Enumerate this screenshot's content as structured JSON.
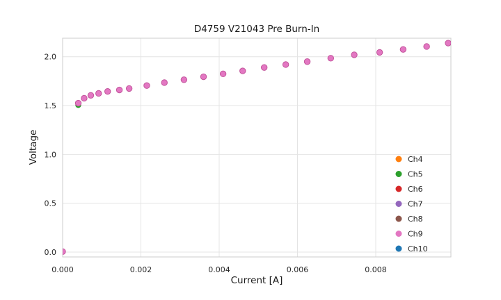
{
  "chart_data": {
    "type": "scatter",
    "title": "D4759 V21043 Pre Burn-In",
    "xlabel": "Current [A]",
    "ylabel": "Voltage",
    "xlim": [
      0,
      0.00992
    ],
    "ylim": [
      -0.05,
      2.19
    ],
    "xticks": [
      0,
      0.002,
      0.004,
      0.006,
      0.008
    ],
    "yticks": [
      0,
      0.5,
      1.0,
      1.5,
      2.0
    ],
    "grid": true,
    "legend_position": "lower right",
    "x": [
      0,
      0.0004,
      0.00055,
      0.00072,
      0.00092,
      0.00115,
      0.00145,
      0.0017,
      0.00215,
      0.0026,
      0.0031,
      0.0036,
      0.0041,
      0.0046,
      0.00515,
      0.0057,
      0.00625,
      0.00685,
      0.00745,
      0.0081,
      0.0087,
      0.0093,
      0.00985
    ],
    "y": [
      0.005,
      1.525,
      1.575,
      1.605,
      1.625,
      1.645,
      1.66,
      1.675,
      1.705,
      1.735,
      1.765,
      1.795,
      1.825,
      1.855,
      1.89,
      1.92,
      1.95,
      1.985,
      2.02,
      2.045,
      2.075,
      2.105,
      2.14
    ],
    "series": [
      {
        "name": "Ch4",
        "color": "#ff7f0e"
      },
      {
        "name": "Ch5",
        "color": "#2ca02c",
        "y": [
          0.005,
          1.505,
          1.575,
          1.605,
          1.625,
          1.645,
          1.66,
          1.675,
          1.705,
          1.735,
          1.765,
          1.795,
          1.825,
          1.855,
          1.89,
          1.92,
          1.95,
          1.985,
          2.02,
          2.045,
          2.075,
          2.105,
          2.14
        ]
      },
      {
        "name": "Ch6",
        "color": "#d62728"
      },
      {
        "name": "Ch7",
        "color": "#9467bd"
      },
      {
        "name": "Ch8",
        "color": "#8c564b"
      },
      {
        "name": "Ch9",
        "color": "#e377c2",
        "edge_color": "#c2549b",
        "on_top": true
      },
      {
        "name": "Ch10",
        "color": "#1f77b4"
      }
    ],
    "style": {
      "grid_color": "#e4e4e4",
      "spine_color": "#cccccc",
      "tick_label_color": "#262626",
      "marker_radius": 4.2
    }
  }
}
